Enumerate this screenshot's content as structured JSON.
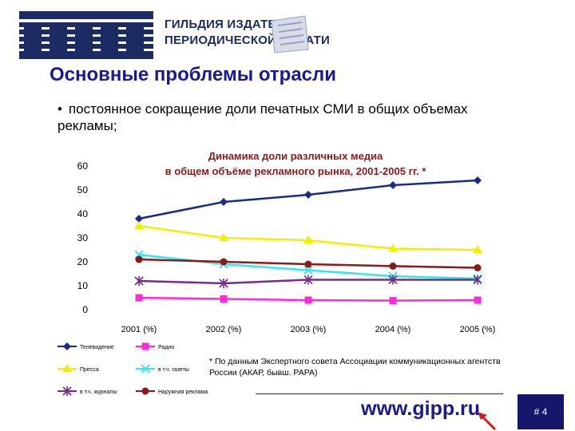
{
  "header": {
    "logo_line1": "ГИЛЬДИЯ ИЗДАТЕЛЕЙ",
    "logo_line2": "ПЕРИОДИЧЕСКОЙ ПЕЧАТИ",
    "brand_color": "#1c2b63"
  },
  "slide": {
    "title": "Основные проблемы отрасли",
    "bullet_marker": "•",
    "bullet_text": "постоянное сокращение доли печатных СМИ в общих объемах рекламы;",
    "footnote": "* По данным Экспертного совета Ассоциации коммуникационных агентств России (АКАР, бывш. РАРА)",
    "site_url": "www.gipp.ru",
    "page_number": "# 4"
  },
  "chart_data": {
    "type": "line",
    "title_line1": "Динамика доли различных медиа",
    "title_line2": "в общем  объёме рекламного рынка, 2001-2005 гг. *",
    "categories": [
      "2001 (%)",
      "2002 (%)",
      "2003 (%)",
      "2004 (%)",
      "2005 (%)"
    ],
    "ylim": [
      0,
      60
    ],
    "yticks": [
      "0",
      "10",
      "20",
      "30",
      "40",
      "50",
      "60"
    ],
    "grid": false,
    "legend_position": "bottom-left",
    "series": [
      {
        "name": "Телевидение",
        "color": "#1a2a8c",
        "marker": "diamond",
        "values": [
          38,
          45,
          48,
          52,
          54
        ]
      },
      {
        "name": "Радио",
        "color": "#ff2bd6",
        "marker": "square",
        "values": [
          5,
          4.5,
          4,
          3.8,
          4
        ]
      },
      {
        "name": "Пресса",
        "color": "#f0f000",
        "marker": "triangle",
        "values": [
          35,
          30,
          29,
          25.5,
          25
        ]
      },
      {
        "name": "в т.ч. газеты",
        "color": "#33e6f0",
        "marker": "x",
        "values": [
          23,
          19,
          16.5,
          14,
          13
        ]
      },
      {
        "name": "в т.ч. журналы",
        "color": "#7a2a8c",
        "marker": "star",
        "values": [
          12,
          11,
          12.5,
          12.5,
          12.5
        ]
      },
      {
        "name": "Наружная реклама",
        "color": "#8b1a1a",
        "marker": "circle",
        "values": [
          21,
          20,
          19,
          18.2,
          17.5
        ]
      }
    ]
  }
}
